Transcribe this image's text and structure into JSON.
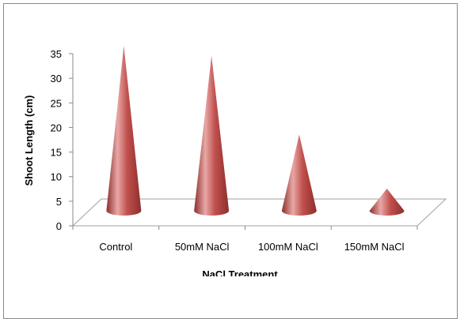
{
  "chart_data": {
    "type": "bar",
    "bar_shape": "cone-3d",
    "categories": [
      "Control",
      "50mM NaCl",
      "100mM NaCl",
      "150mM NaCl"
    ],
    "series": [
      {
        "values": [
          34,
          32,
          16,
          5
        ]
      }
    ],
    "xlabel": "NaCl Treatment",
    "ylabel": "Shoot  Length (cm)",
    "ylim": [
      0,
      35
    ],
    "yticks": [
      "0",
      "5",
      "10",
      "15",
      "20",
      "25",
      "30",
      "35"
    ],
    "grid": false,
    "legend": "none",
    "colors": {
      "cone_main": "#c0504d",
      "cone_light": "#e8a8a6",
      "cone_dark": "#8c2f2c",
      "floor_line": "#a0a0a0"
    }
  }
}
